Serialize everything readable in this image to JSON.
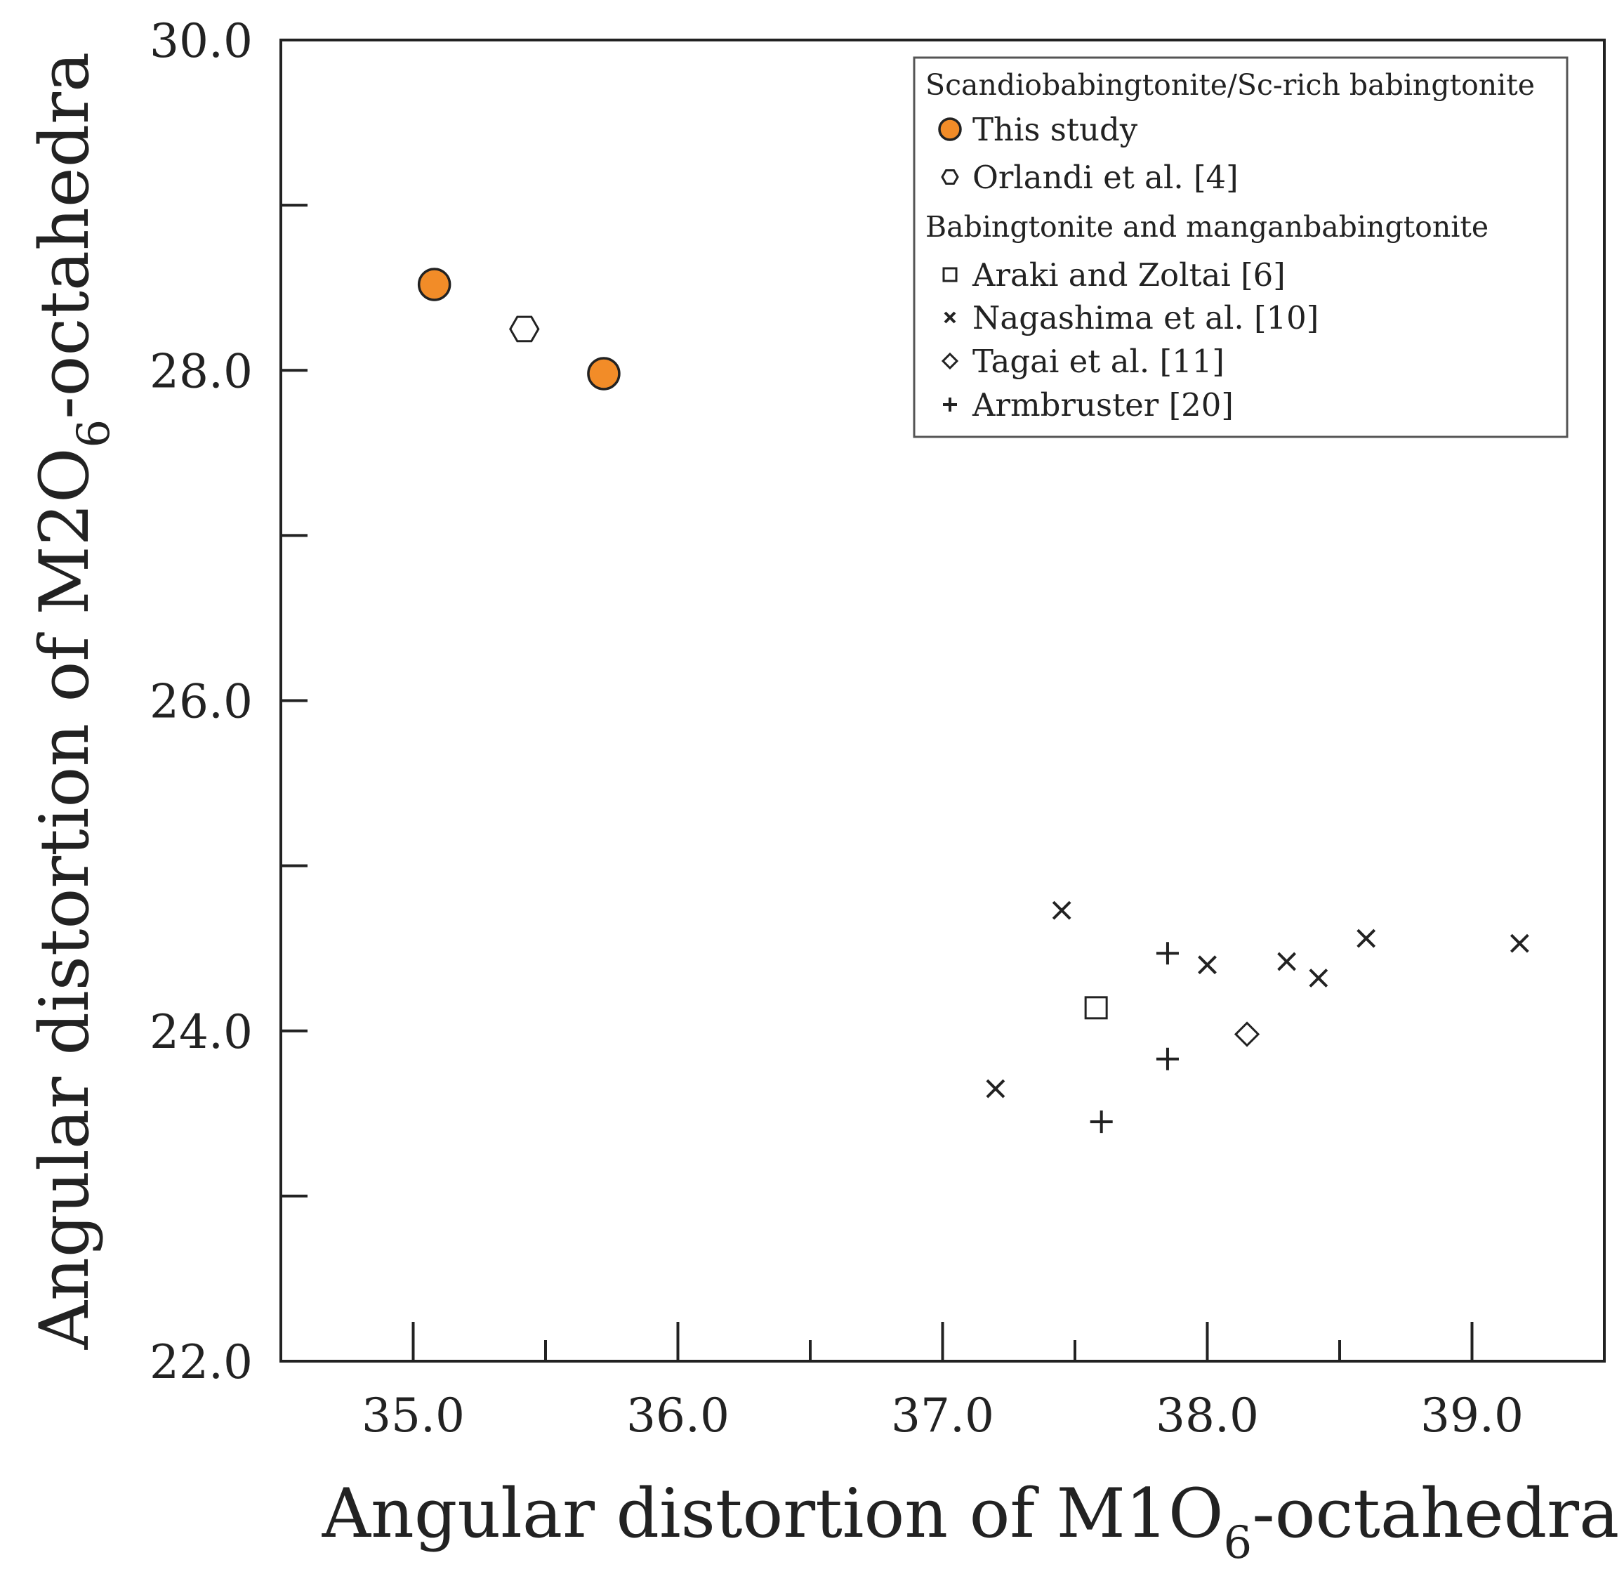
{
  "chart_data": {
    "type": "scatter",
    "title": "",
    "xlabel": {
      "main": "Angular distortion of M1O",
      "sub": "6",
      "suffix": "-octahedra"
    },
    "ylabel": {
      "main": "Angular distortion of M2O",
      "sub": "6",
      "suffix": "-octahedra"
    },
    "xlim": [
      34.5,
      39.5
    ],
    "ylim": [
      22.0,
      30.0
    ],
    "x_ticks": [
      35.0,
      36.0,
      37.0,
      38.0,
      39.0
    ],
    "x_tick_labels": [
      "35.0",
      "36.0",
      "37.0",
      "38.0",
      "39.0"
    ],
    "x_minor_ticks": [
      35.5,
      36.5,
      37.5,
      38.5
    ],
    "y_ticks": [
      22.0,
      24.0,
      26.0,
      28.0,
      30.0
    ],
    "y_tick_labels": [
      "22.0",
      "24.0",
      "26.0",
      "28.0",
      "30.0"
    ],
    "y_minor_ticks": [
      23.0,
      25.0,
      27.0,
      29.0
    ],
    "grid": false,
    "legend_position": "top-right",
    "legend": {
      "groups": [
        {
          "title": "Scandiobabingtonite/Sc-rich babingtonite",
          "series_names": [
            "This study",
            "Orlandi et al. [4]"
          ]
        },
        {
          "title": "Babingtonite and manganbabingtonite",
          "series_names": [
            "Araki and Zoltai [6]",
            "Nagashima et al. [10]",
            "Tagai et al. [11]",
            "Armbruster [20]"
          ]
        }
      ]
    },
    "series": [
      {
        "name": "This study",
        "marker": "circle",
        "color": "#F28C28",
        "points": [
          [
            35.08,
            28.52
          ],
          [
            35.72,
            27.98
          ]
        ]
      },
      {
        "name": "Orlandi et al. [4]",
        "marker": "hexagon",
        "color": "#ffffff",
        "points": [
          [
            35.42,
            28.25
          ]
        ]
      },
      {
        "name": "Araki and Zoltai [6]",
        "marker": "square",
        "color": "#ffffff",
        "points": [
          [
            37.58,
            24.14
          ]
        ]
      },
      {
        "name": "Nagashima et al. [10]",
        "marker": "x",
        "color": "#222222",
        "points": [
          [
            37.45,
            24.73
          ],
          [
            37.2,
            23.65
          ],
          [
            38.0,
            24.4
          ],
          [
            38.3,
            24.42
          ],
          [
            38.42,
            24.32
          ],
          [
            38.6,
            24.56
          ],
          [
            39.18,
            24.53
          ]
        ]
      },
      {
        "name": "Tagai et al. [11]",
        "marker": "diamond",
        "color": "#ffffff",
        "points": [
          [
            38.15,
            23.98
          ]
        ]
      },
      {
        "name": "Armbruster [20]",
        "marker": "plus",
        "color": "#222222",
        "points": [
          [
            37.85,
            24.47
          ],
          [
            37.85,
            23.83
          ],
          [
            37.6,
            23.45
          ]
        ]
      }
    ]
  }
}
